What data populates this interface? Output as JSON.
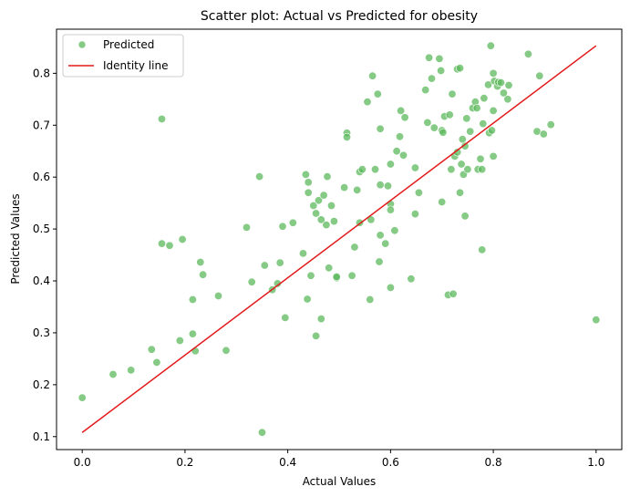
{
  "chart_data": {
    "type": "scatter",
    "title": "Scatter plot: Actual vs Predicted for obesity",
    "xlabel": "Actual Values",
    "ylabel": "Predicted Values",
    "xlim": [
      -0.05,
      1.05
    ],
    "ylim": [
      0.075,
      0.885
    ],
    "xticks": [
      "0.0",
      "0.2",
      "0.4",
      "0.6",
      "0.8",
      "1.0"
    ],
    "yticks": [
      "0.1",
      "0.2",
      "0.3",
      "0.4",
      "0.5",
      "0.6",
      "0.7",
      "0.8"
    ],
    "grid": false,
    "legend": {
      "position": "top-left",
      "entries": [
        {
          "label": "Predicted",
          "marker": "circle",
          "color": "#5cb85c"
        },
        {
          "label": "Identity line",
          "marker": "line",
          "color": "#e31a1c"
        }
      ]
    },
    "series": [
      {
        "name": "Predicted",
        "color": "#5cb85c",
        "points": [
          [
            0.0,
            0.175
          ],
          [
            0.06,
            0.22
          ],
          [
            0.095,
            0.228
          ],
          [
            0.135,
            0.268
          ],
          [
            0.145,
            0.243
          ],
          [
            0.155,
            0.712
          ],
          [
            0.155,
            0.472
          ],
          [
            0.17,
            0.468
          ],
          [
            0.19,
            0.285
          ],
          [
            0.195,
            0.48
          ],
          [
            0.215,
            0.298
          ],
          [
            0.215,
            0.364
          ],
          [
            0.22,
            0.265
          ],
          [
            0.23,
            0.436
          ],
          [
            0.235,
            0.412
          ],
          [
            0.265,
            0.371
          ],
          [
            0.28,
            0.266
          ],
          [
            0.32,
            0.503
          ],
          [
            0.33,
            0.398
          ],
          [
            0.345,
            0.601
          ],
          [
            0.35,
            0.108
          ],
          [
            0.355,
            0.43
          ],
          [
            0.37,
            0.383
          ],
          [
            0.38,
            0.395
          ],
          [
            0.385,
            0.435
          ],
          [
            0.39,
            0.505
          ],
          [
            0.395,
            0.329
          ],
          [
            0.41,
            0.512
          ],
          [
            0.43,
            0.453
          ],
          [
            0.435,
            0.605
          ],
          [
            0.438,
            0.365
          ],
          [
            0.44,
            0.59
          ],
          [
            0.44,
            0.57
          ],
          [
            0.445,
            0.41
          ],
          [
            0.45,
            0.545
          ],
          [
            0.455,
            0.294
          ],
          [
            0.455,
            0.53
          ],
          [
            0.46,
            0.555
          ],
          [
            0.465,
            0.518
          ],
          [
            0.465,
            0.327
          ],
          [
            0.47,
            0.565
          ],
          [
            0.475,
            0.508
          ],
          [
            0.477,
            0.601
          ],
          [
            0.48,
            0.425
          ],
          [
            0.485,
            0.545
          ],
          [
            0.49,
            0.515
          ],
          [
            0.495,
            0.406
          ],
          [
            0.495,
            0.408
          ],
          [
            0.51,
            0.58
          ],
          [
            0.515,
            0.685
          ],
          [
            0.515,
            0.677
          ],
          [
            0.525,
            0.41
          ],
          [
            0.53,
            0.465
          ],
          [
            0.535,
            0.575
          ],
          [
            0.54,
            0.61
          ],
          [
            0.54,
            0.512
          ],
          [
            0.545,
            0.615
          ],
          [
            0.555,
            0.745
          ],
          [
            0.56,
            0.364
          ],
          [
            0.562,
            0.518
          ],
          [
            0.565,
            0.795
          ],
          [
            0.57,
            0.615
          ],
          [
            0.575,
            0.76
          ],
          [
            0.578,
            0.437
          ],
          [
            0.58,
            0.693
          ],
          [
            0.58,
            0.585
          ],
          [
            0.58,
            0.488
          ],
          [
            0.59,
            0.472
          ],
          [
            0.595,
            0.583
          ],
          [
            0.6,
            0.625
          ],
          [
            0.6,
            0.548
          ],
          [
            0.6,
            0.537
          ],
          [
            0.6,
            0.387
          ],
          [
            0.608,
            0.497
          ],
          [
            0.612,
            0.65
          ],
          [
            0.618,
            0.678
          ],
          [
            0.62,
            0.728
          ],
          [
            0.625,
            0.642
          ],
          [
            0.628,
            0.715
          ],
          [
            0.64,
            0.404
          ],
          [
            0.648,
            0.529
          ],
          [
            0.648,
            0.618
          ],
          [
            0.655,
            0.57
          ],
          [
            0.668,
            0.768
          ],
          [
            0.672,
            0.705
          ],
          [
            0.675,
            0.83
          ],
          [
            0.68,
            0.79
          ],
          [
            0.685,
            0.695
          ],
          [
            0.695,
            0.828
          ],
          [
            0.698,
            0.805
          ],
          [
            0.7,
            0.69
          ],
          [
            0.7,
            0.552
          ],
          [
            0.702,
            0.686
          ],
          [
            0.705,
            0.717
          ],
          [
            0.712,
            0.373
          ],
          [
            0.715,
            0.72
          ],
          [
            0.718,
            0.615
          ],
          [
            0.72,
            0.76
          ],
          [
            0.722,
            0.375
          ],
          [
            0.725,
            0.64
          ],
          [
            0.73,
            0.808
          ],
          [
            0.73,
            0.648
          ],
          [
            0.735,
            0.81
          ],
          [
            0.735,
            0.57
          ],
          [
            0.738,
            0.625
          ],
          [
            0.74,
            0.673
          ],
          [
            0.742,
            0.605
          ],
          [
            0.745,
            0.525
          ],
          [
            0.745,
            0.66
          ],
          [
            0.748,
            0.713
          ],
          [
            0.75,
            0.615
          ],
          [
            0.755,
            0.688
          ],
          [
            0.76,
            0.733
          ],
          [
            0.765,
            0.745
          ],
          [
            0.768,
            0.733
          ],
          [
            0.77,
            0.615
          ],
          [
            0.775,
            0.635
          ],
          [
            0.778,
            0.615
          ],
          [
            0.778,
            0.46
          ],
          [
            0.78,
            0.703
          ],
          [
            0.782,
            0.752
          ],
          [
            0.79,
            0.778
          ],
          [
            0.792,
            0.685
          ],
          [
            0.795,
            0.853
          ],
          [
            0.797,
            0.69
          ],
          [
            0.8,
            0.8
          ],
          [
            0.802,
            0.785
          ],
          [
            0.8,
            0.64
          ],
          [
            0.8,
            0.728
          ],
          [
            0.808,
            0.775
          ],
          [
            0.81,
            0.783
          ],
          [
            0.815,
            0.782
          ],
          [
            0.82,
            0.762
          ],
          [
            0.828,
            0.75
          ],
          [
            0.83,
            0.777
          ],
          [
            0.868,
            0.837
          ],
          [
            0.885,
            0.688
          ],
          [
            0.89,
            0.795
          ],
          [
            0.898,
            0.683
          ],
          [
            0.912,
            0.701
          ],
          [
            1.0,
            0.325
          ]
        ]
      },
      {
        "name": "Identity line",
        "color": "#e31a1c",
        "type": "line",
        "points": [
          [
            0.0,
            0.108
          ],
          [
            1.0,
            0.853
          ]
        ]
      }
    ]
  }
}
